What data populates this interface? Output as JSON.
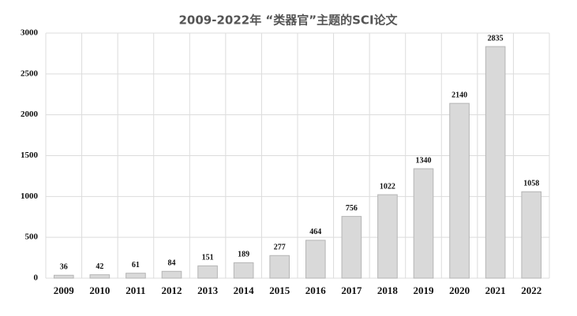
{
  "chart_data": {
    "type": "bar",
    "title": "2009-2022年 “类器官”主题的SCI论文",
    "categories": [
      "2009",
      "2010",
      "2011",
      "2012",
      "2013",
      "2014",
      "2015",
      "2016",
      "2017",
      "2018",
      "2019",
      "2020",
      "2021",
      "2022"
    ],
    "values": [
      36,
      42,
      61,
      84,
      151,
      189,
      277,
      464,
      756,
      1022,
      1340,
      2140,
      2835,
      1058
    ],
    "color": "#d9d9d9",
    "ylim": [
      0,
      3000
    ],
    "yticks": [
      0,
      500,
      1000,
      1500,
      2000,
      2500,
      3000
    ],
    "grid": true
  }
}
